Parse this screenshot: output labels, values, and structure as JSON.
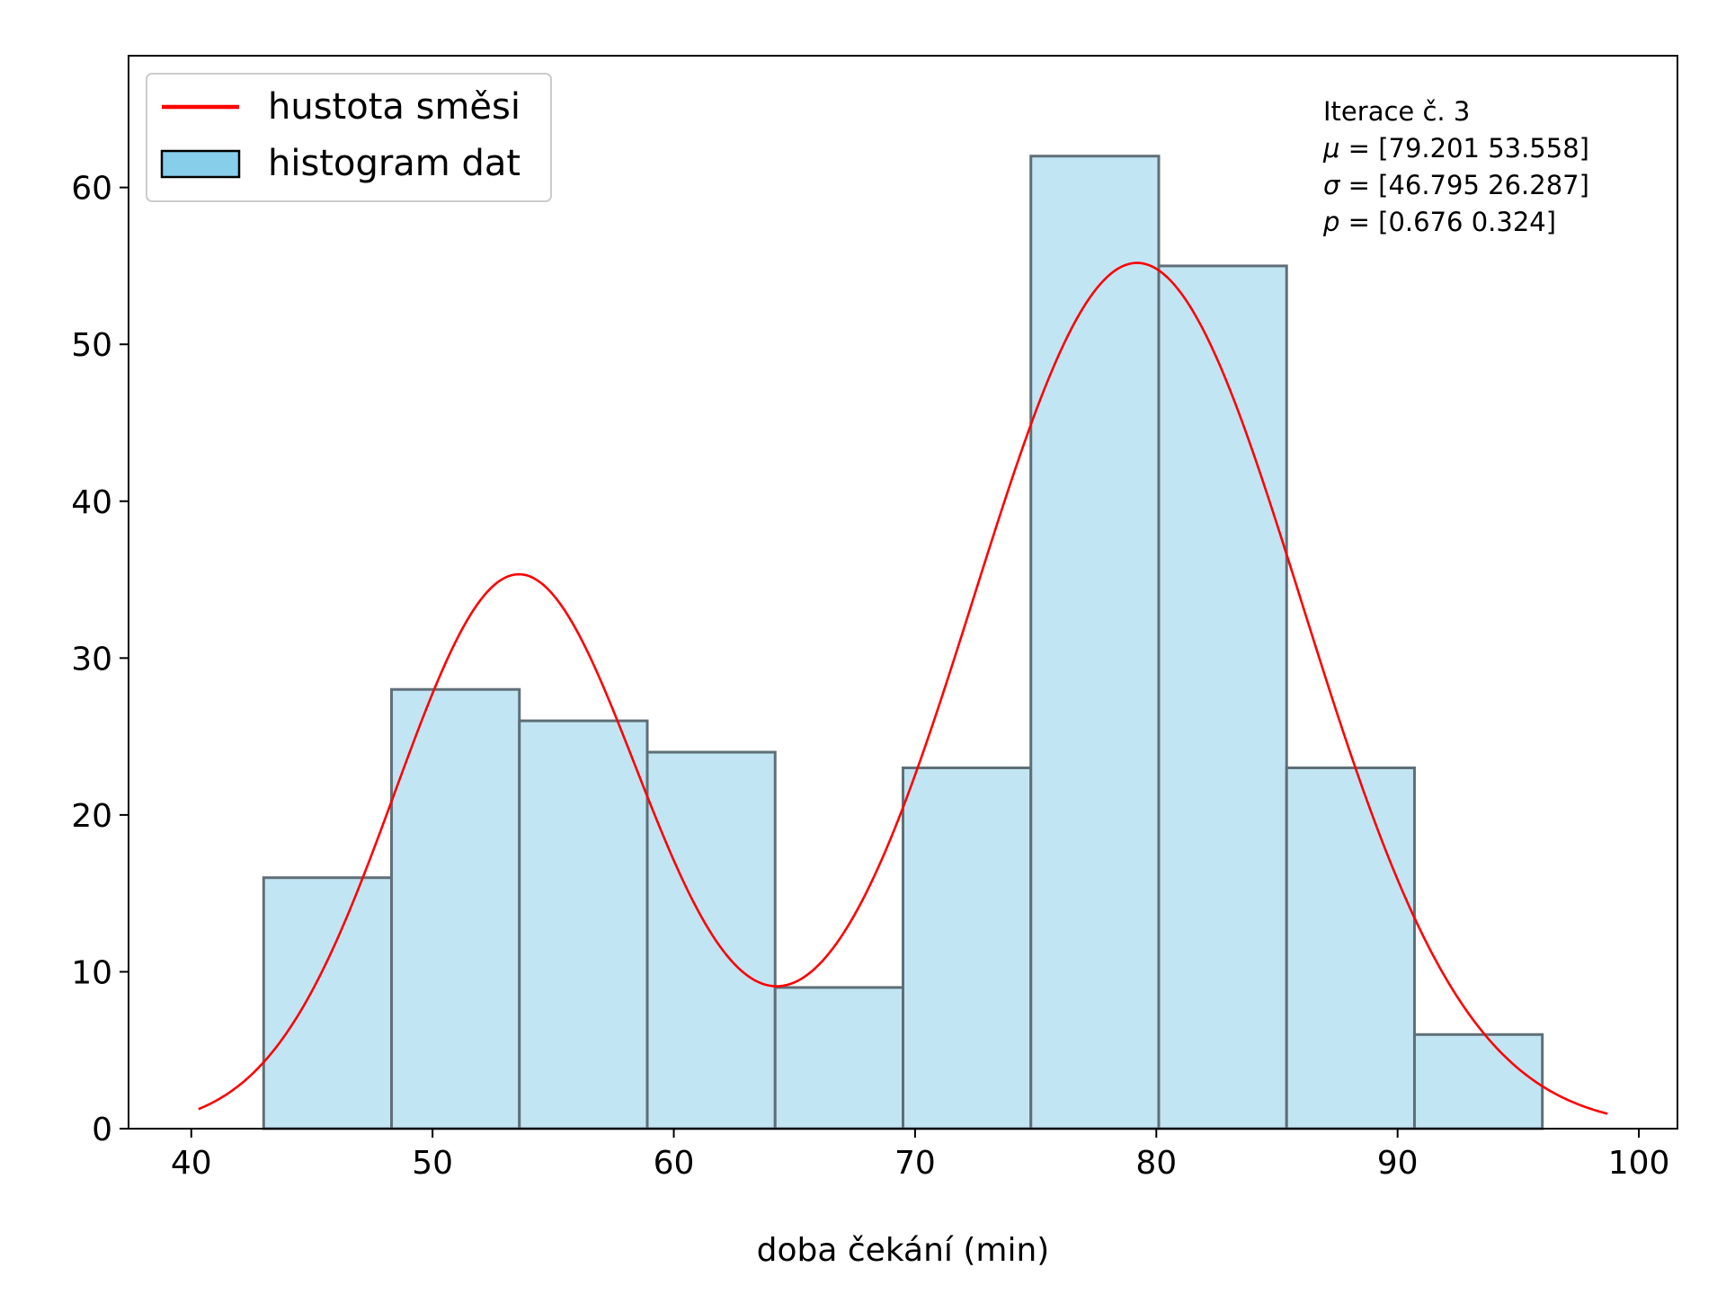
{
  "chart_data": {
    "type": "bar",
    "title": "",
    "xlabel": "doba čekání (min)",
    "ylabel": "",
    "xlim": [
      37.4,
      101.6
    ],
    "ylim": [
      0,
      68.4
    ],
    "x_ticks": [
      40,
      50,
      60,
      70,
      80,
      90,
      100
    ],
    "y_ticks": [
      0,
      10,
      20,
      30,
      40,
      50,
      60
    ],
    "histogram": {
      "name": "histogram dat",
      "bin_edges": [
        43.0,
        48.3,
        53.6,
        58.9,
        64.2,
        69.5,
        74.8,
        80.1,
        85.4,
        90.7,
        96.0
      ],
      "counts": [
        16,
        28,
        26,
        24,
        9,
        23,
        62,
        55,
        23,
        6
      ],
      "fill_color": "#c2e5f4",
      "edge_color": "#5f6f77"
    },
    "density": {
      "name": "hustota směsi",
      "color": "#ff0000",
      "x_range": [
        40.3,
        98.7
      ],
      "mu": [
        79.201,
        53.558
      ],
      "sigma2": [
        46.795,
        26.287
      ],
      "p": [
        0.676,
        0.324
      ],
      "scale": 1400
    },
    "legend": {
      "position": "top-left",
      "line_label": "hustota směsi",
      "patch_label": "histogram dat",
      "patch_color": "#87ceeb"
    },
    "annotation": {
      "position": "top-right",
      "lines": [
        {
          "prefix": "",
          "text": "Iterace č. 3"
        },
        {
          "prefix": "μ",
          "text": " = [79.201 53.558]"
        },
        {
          "prefix": "σ",
          "text": " = [46.795 26.287]"
        },
        {
          "prefix": "p",
          "text": " = [0.676 0.324]"
        }
      ]
    },
    "grid": false
  }
}
